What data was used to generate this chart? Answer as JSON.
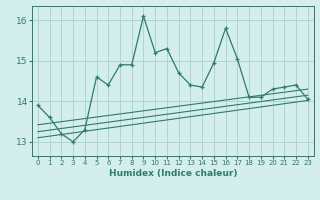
{
  "xlabel": "Humidex (Indice chaleur)",
  "ylabel": "",
  "background_color": "#d4eeee",
  "grid_color": "#aed4d4",
  "line_color": "#2e7a6e",
  "xlim": [
    -0.5,
    23.5
  ],
  "ylim": [
    12.65,
    16.35
  ],
  "yticks": [
    13,
    14,
    15,
    16
  ],
  "xticks": [
    0,
    1,
    2,
    3,
    4,
    5,
    6,
    7,
    8,
    9,
    10,
    11,
    12,
    13,
    14,
    15,
    16,
    17,
    18,
    19,
    20,
    21,
    22,
    23
  ],
  "main_x": [
    0,
    1,
    2,
    3,
    4,
    5,
    6,
    7,
    8,
    9,
    10,
    11,
    12,
    13,
    14,
    15,
    16,
    17,
    18,
    19,
    20,
    21,
    22,
    23
  ],
  "main_y": [
    13.9,
    13.6,
    13.2,
    13.0,
    13.3,
    14.6,
    14.4,
    14.9,
    14.9,
    16.1,
    15.2,
    15.3,
    14.7,
    14.4,
    14.35,
    14.95,
    15.8,
    15.05,
    14.1,
    14.1,
    14.3,
    14.35,
    14.4,
    14.05
  ],
  "line1_x": [
    0,
    23
  ],
  "line1_y": [
    13.1,
    14.02
  ],
  "line2_x": [
    0,
    23
  ],
  "line2_y": [
    13.25,
    14.15
  ],
  "line3_x": [
    0,
    23
  ],
  "line3_y": [
    13.42,
    14.3
  ]
}
